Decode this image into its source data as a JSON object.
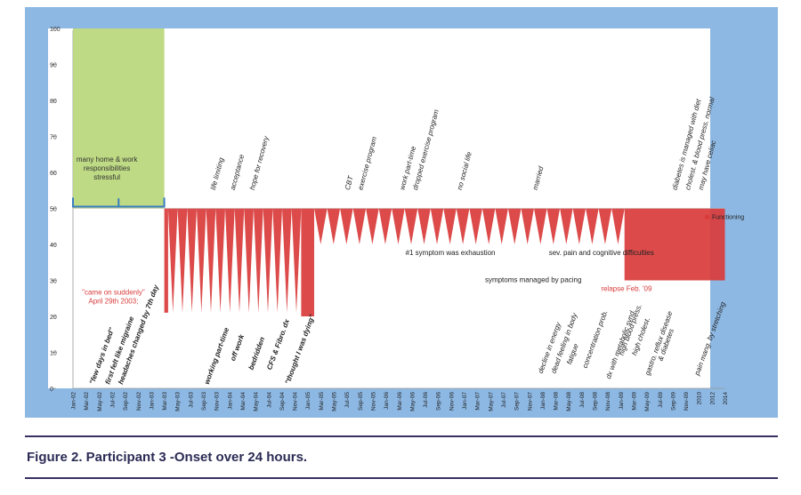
{
  "caption": "Figure 2. Participant 3 -Onset over 24 hours.",
  "chart_data": {
    "type": "area",
    "ylim": [
      0,
      100
    ],
    "yticks": [
      0,
      10,
      20,
      30,
      40,
      50,
      60,
      70,
      80,
      90,
      100
    ],
    "categories": [
      "Jan-02",
      "Mar-02",
      "May-02",
      "Jul-02",
      "Sep-02",
      "Nov-02",
      "Jan-03",
      "Mar-03",
      "May-03",
      "Jul-03",
      "Sep-03",
      "Nov-03",
      "Jan-04",
      "Mar-04",
      "May-04",
      "Jul-04",
      "Sep-04",
      "Nov-04",
      "Jan-05",
      "Mar-05",
      "May-05",
      "Jul-05",
      "Sep-05",
      "Nov-05",
      "Jan-06",
      "Mar-06",
      "May-06",
      "Jul-06",
      "Sep-06",
      "Nov-06",
      "Jan-07",
      "Mar-07",
      "May-07",
      "Jul-07",
      "Sep-07",
      "Nov-07",
      "Jan-08",
      "Mar-08",
      "May-08",
      "Jul-08",
      "Sep-08",
      "Nov-08",
      "Jan-09",
      "Mar-09",
      "May-09",
      "Jul-09",
      "Sep-09",
      "Nov-09",
      "2010",
      "2012",
      "2014"
    ],
    "baseline": 50,
    "legend": {
      "label": "Functioning",
      "position": "right"
    },
    "series": [
      {
        "name": "Functioning",
        "color": "#d93b3b",
        "segments": [
          {
            "start": 0,
            "end": 7,
            "value": 100,
            "kind": "flat",
            "color": "#b9d77a"
          },
          {
            "start": 7,
            "end": 7.3,
            "value": 21,
            "kind": "flat"
          },
          {
            "start": 7.3,
            "end": 17.5,
            "count": 14,
            "high": 50,
            "low": 21,
            "kind": "zigzag"
          },
          {
            "start": 17.5,
            "end": 18.5,
            "value": 20,
            "kind": "flat"
          },
          {
            "start": 18.5,
            "end": 42.3,
            "count": 24,
            "high": 50,
            "low": 40,
            "kind": "zigzag"
          },
          {
            "start": 42.3,
            "end": 50,
            "value": 30,
            "kind": "flat"
          }
        ]
      }
    ],
    "annotations": {
      "horizontal": [
        {
          "text": "many home & work\nresponsibilities\nstressful",
          "x": 2.6,
          "y": 63,
          "color": "#333333"
        },
        {
          "text": "\"came on suddenly\"\nApril 29th 2003;",
          "x": 3.1,
          "y": 26,
          "color": "#d93b3b"
        },
        {
          "text": "#1 symptom was exhaustion",
          "x": 25.5,
          "y": 37,
          "color": "#222222"
        },
        {
          "text": "sev. pain and cognitive difficulties",
          "x": 36.5,
          "y": 37,
          "color": "#222222"
        },
        {
          "text": "symptoms managed by pacing",
          "x": 31.6,
          "y": 29.5,
          "color": "#222222"
        },
        {
          "text": "relapse Feb. '09",
          "x": 40.5,
          "y": 27,
          "color": "#d93b3b"
        }
      ],
      "top_vertical": [
        {
          "text": "life limiting",
          "x": 10.9
        },
        {
          "text": "acceptance",
          "x": 12.4
        },
        {
          "text": "hope for recovery",
          "x": 13.9
        },
        {
          "text": "CBT",
          "x": 21.2
        },
        {
          "text": "exercise program",
          "x": 22.2
        },
        {
          "text": "work part-time",
          "x": 25.4
        },
        {
          "text": "dropped exercise program",
          "x": 26.4
        },
        {
          "text": "no social life",
          "x": 29.8
        },
        {
          "text": "married",
          "x": 35.6
        },
        {
          "text": "diabetes is managed with diet",
          "x": 46.3
        },
        {
          "text": "cholest. & blood press. normal",
          "x": 47.3
        },
        {
          "text": "may have celiac",
          "x": 48.3
        }
      ],
      "bottom_vertical": [
        {
          "text": "\"few days in bed\"",
          "x": 1.6,
          "y": 1
        },
        {
          "text": "first felt like migraine",
          "x": 2.8,
          "y": 1
        },
        {
          "text": "headaches changed by 7th day",
          "x": 3.8,
          "y": 1
        },
        {
          "text": "working part-time",
          "x": 10.4,
          "y": 1
        },
        {
          "text": "off work",
          "x": 12.4,
          "y": 7.5
        },
        {
          "text": "bedridden",
          "x": 13.8,
          "y": 5
        },
        {
          "text": "CFS & Fibro. dx",
          "x": 15.2,
          "y": 5
        },
        {
          "text": "\"thought I was dying\"",
          "x": 16.6,
          "y": 1
        },
        {
          "text": "decline in energy",
          "x": 36.0,
          "y": 4
        },
        {
          "text": "dead feeling in body",
          "x": 37.0,
          "y": 4
        },
        {
          "text": "fatigue",
          "x": 38.2,
          "y": 6.5
        },
        {
          "text": "concentration prob.",
          "x": 39.4,
          "y": 5.5
        },
        {
          "text": "dx with metabolic synd.",
          "x": 41.2,
          "y": 2.5
        },
        {
          "text": "high blood press.",
          "x": 42.2,
          "y": 9
        },
        {
          "text": "high cholest.",
          "x": 43.2,
          "y": 9
        },
        {
          "text": "gastro. reflux disease",
          "x": 44.2,
          "y": 3.5
        },
        {
          "text": "& diabetes",
          "x": 45.2,
          "y": 7.5
        },
        {
          "text": "pain mang. by stretching",
          "x": 48.0,
          "y": 3.5
        }
      ]
    }
  }
}
